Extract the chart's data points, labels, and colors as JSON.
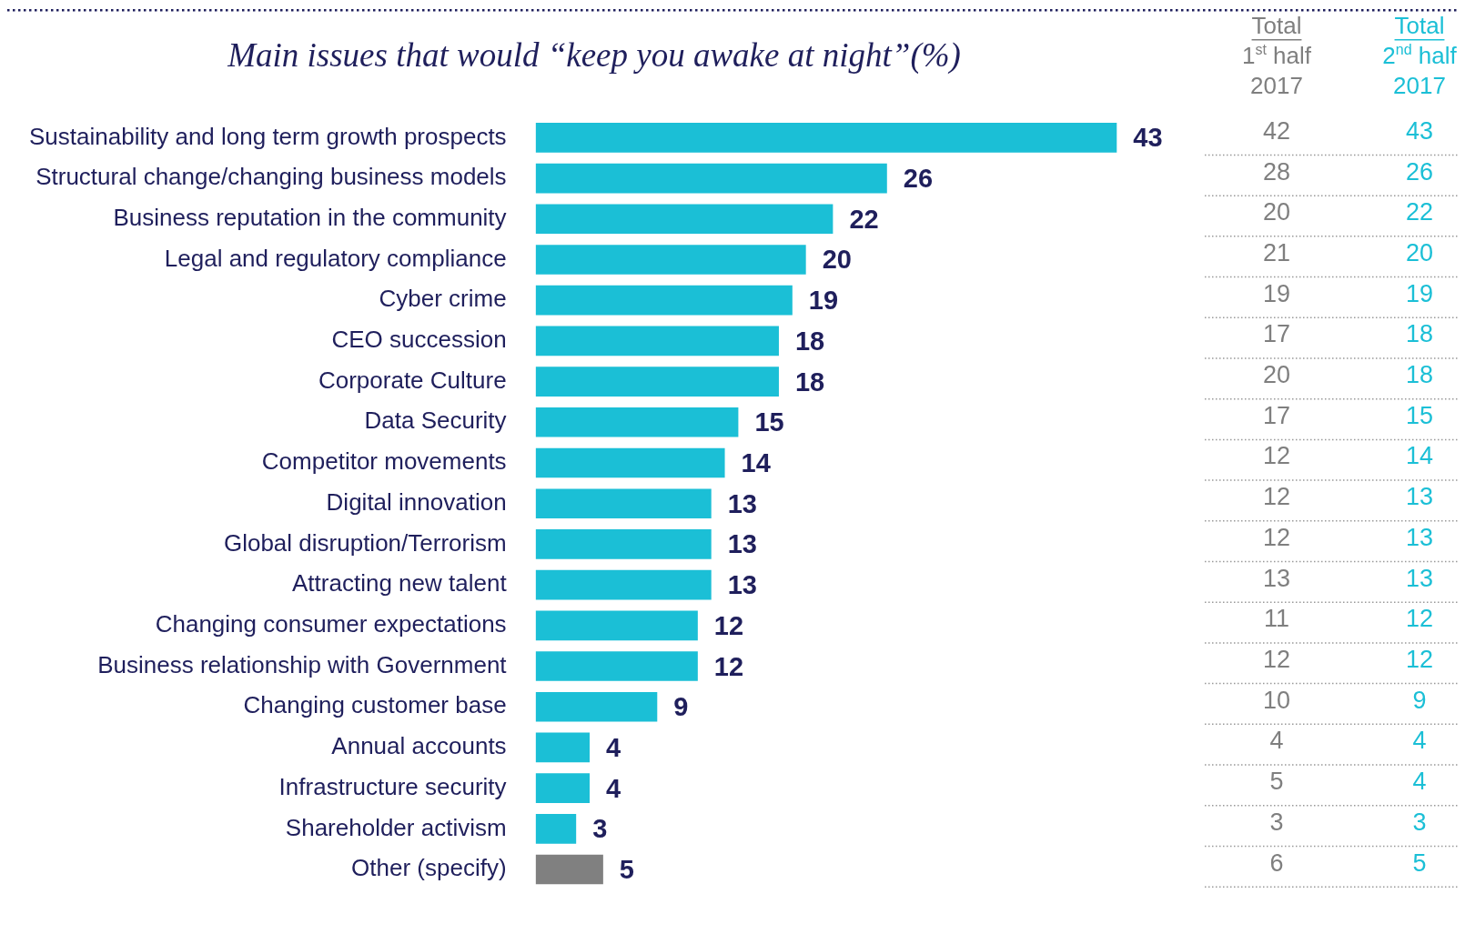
{
  "chart_data": {
    "type": "bar",
    "orientation": "horizontal",
    "title": "Main issues that would “keep you awake at night”(%)",
    "categories": [
      "Sustainability and long term growth prospects",
      "Structural change/changing business models",
      "Business reputation in the community",
      "Legal and regulatory compliance",
      "Cyber crime",
      "CEO succession",
      "Corporate Culture",
      "Data Security",
      "Competitor movements",
      "Digital innovation",
      "Global disruption/Terrorism",
      "Attracting new talent",
      "Changing consumer expectations",
      "Business relationship with Government",
      "Changing customer base",
      "Annual accounts",
      "Infrastructure security",
      "Shareholder activism",
      "Other (specify)"
    ],
    "values": [
      43,
      26,
      22,
      20,
      19,
      18,
      18,
      15,
      14,
      13,
      13,
      13,
      12,
      12,
      9,
      4,
      4,
      3,
      5
    ],
    "colors": [
      "#1bbfd6",
      "#1bbfd6",
      "#1bbfd6",
      "#1bbfd6",
      "#1bbfd6",
      "#1bbfd6",
      "#1bbfd6",
      "#1bbfd6",
      "#1bbfd6",
      "#1bbfd6",
      "#1bbfd6",
      "#1bbfd6",
      "#1bbfd6",
      "#1bbfd6",
      "#1bbfd6",
      "#1bbfd6",
      "#1bbfd6",
      "#1bbfd6",
      "#808080"
    ],
    "data_labels": true,
    "annotations": [
      "Total\n1$^{st}$ half\n2017",
      "42",
      "28",
      "20",
      "21",
      "19",
      "17",
      "20",
      "17",
      "12",
      "12",
      "12",
      "13",
      "11",
      "12",
      "10",
      "4",
      "5",
      "3",
      "6",
      "Total\n2$^{nd}$ half\n2017",
      "43",
      "26",
      "22",
      "20",
      "19",
      "18",
      "18",
      "15",
      "14",
      "13",
      "13",
      "13",
      "12",
      "12",
      "9",
      "4",
      "4",
      "3",
      "5"
    ]
  }
}
